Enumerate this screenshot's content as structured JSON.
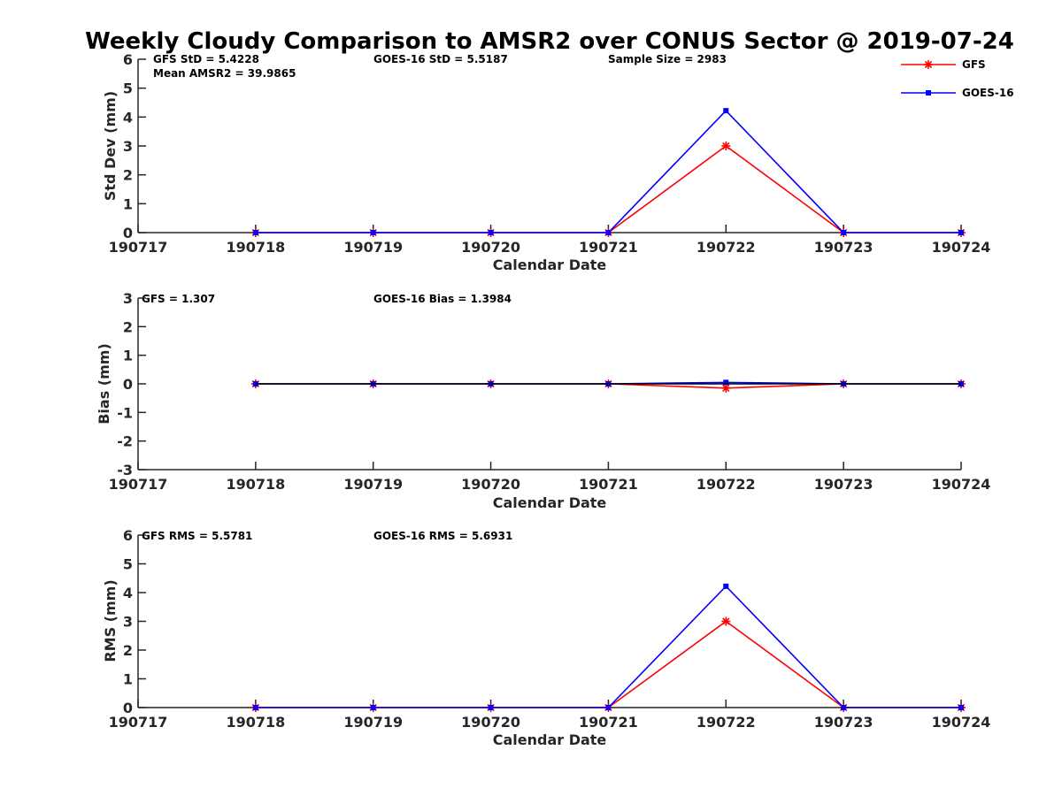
{
  "chart_data": {
    "title": "Weekly Cloudy Comparison to AMSR2 over CONUS Sector @ 2019-07-24",
    "type": "line",
    "x": [
      "190717",
      "190718",
      "190719",
      "190720",
      "190721",
      "190722",
      "190723",
      "190724"
    ],
    "legend": {
      "placement": "top-right",
      "entries": [
        {
          "name": "GFS",
          "color": "#ff0000",
          "marker": "asterisk"
        },
        {
          "name": "GOES-16",
          "color": "#0000ff",
          "marker": "square"
        }
      ]
    },
    "panels": [
      {
        "name": "std",
        "ylabel": "Std Dev (mm)",
        "xlabel": "Calendar Date",
        "ylim": [
          0,
          6
        ],
        "yticks": [
          "0",
          "1",
          "2",
          "3",
          "4",
          "5",
          "6"
        ],
        "annotations": {
          "gfs": "GFS StD = 5.4228",
          "goes": "GOES-16 StD = 5.5187",
          "sample": "Sample Size = 2983",
          "mean": "Mean AMSR2 = 39.9865"
        },
        "series": [
          {
            "name": "GFS",
            "color": "#ff0000",
            "marker": "asterisk",
            "x": [
              1,
              2,
              3,
              4,
              5,
              6,
              7
            ],
            "values": [
              0,
              0,
              0,
              0,
              3.0,
              0,
              0
            ]
          },
          {
            "name": "GOES-16",
            "color": "#0000ff",
            "marker": "square",
            "x": [
              1,
              2,
              3,
              4,
              5,
              6,
              7
            ],
            "values": [
              0,
              0,
              0,
              0,
              4.22,
              0,
              0
            ]
          }
        ]
      },
      {
        "name": "bias",
        "ylabel": "Bias (mm)",
        "xlabel": "Calendar Date",
        "ylim": [
          -3,
          3
        ],
        "yticks": [
          "-3",
          "-2",
          "-1",
          "0",
          "1",
          "2",
          "3"
        ],
        "annotations": {
          "gfs": "GFS = 1.307",
          "goes": "GOES-16 Bias  = 1.3984"
        },
        "series": [
          {
            "name": "GFS",
            "color": "#ff0000",
            "marker": "asterisk",
            "x": [
              1,
              2,
              3,
              4,
              5,
              6,
              7
            ],
            "values": [
              0,
              0,
              0,
              0,
              -0.15,
              0,
              0
            ]
          },
          {
            "name": "GOES-16",
            "color": "#0000ff",
            "marker": "square",
            "x": [
              1,
              2,
              3,
              4,
              5,
              6,
              7
            ],
            "values": [
              0,
              0,
              0,
              0,
              0.05,
              0,
              0
            ]
          }
        ]
      },
      {
        "name": "rms",
        "ylabel": "RMS (mm)",
        "xlabel": "Calendar Date",
        "ylim": [
          0,
          6
        ],
        "yticks": [
          "0",
          "1",
          "2",
          "3",
          "4",
          "5",
          "6"
        ],
        "annotations": {
          "gfs": "GFS RMS = 5.5781",
          "goes": "GOES-16 RMS = 5.6931"
        },
        "series": [
          {
            "name": "GFS",
            "color": "#ff0000",
            "marker": "asterisk",
            "x": [
              1,
              2,
              3,
              4,
              5,
              6,
              7
            ],
            "values": [
              0,
              0,
              0,
              0,
              3.0,
              0,
              0
            ]
          },
          {
            "name": "GOES-16",
            "color": "#0000ff",
            "marker": "square",
            "x": [
              1,
              2,
              3,
              4,
              5,
              6,
              7
            ],
            "values": [
              0,
              0,
              0,
              0,
              4.22,
              0,
              0
            ]
          }
        ]
      }
    ]
  }
}
